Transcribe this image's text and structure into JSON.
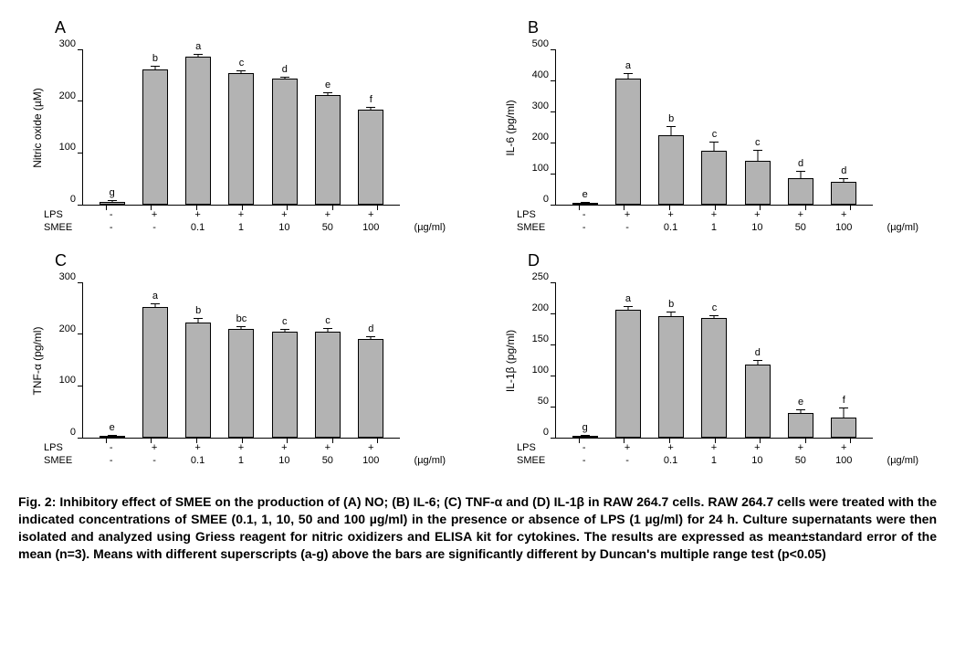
{
  "figure": {
    "panel_letters": [
      "A",
      "B",
      "C",
      "D"
    ],
    "x_row_labels": [
      "LPS",
      "SMEE"
    ],
    "unit_label": "(µg/ml)",
    "panels": {
      "A": {
        "type": "bar",
        "y_label": "Nitric oxide (µM)",
        "ylim": [
          0,
          300
        ],
        "ytick_step": 100,
        "bar_color": "#b3b3b3",
        "bar_border": "#000000",
        "categories_lps": [
          "-",
          "+",
          "+",
          "+",
          "+",
          "+",
          "+"
        ],
        "categories_smee": [
          "-",
          "-",
          "0.1",
          "1",
          "10",
          "50",
          "100"
        ],
        "values": [
          5,
          262,
          286,
          255,
          243,
          212,
          184
        ],
        "errors": [
          2,
          4,
          3,
          3,
          3,
          3,
          3
        ],
        "superscripts": [
          "g",
          "b",
          "a",
          "c",
          "d",
          "e",
          "f"
        ]
      },
      "B": {
        "type": "bar",
        "y_label": "IL-6 (pg/ml)",
        "ylim": [
          0,
          500
        ],
        "ytick_step": 100,
        "bar_color": "#b3b3b3",
        "bar_border": "#000000",
        "categories_lps": [
          "-",
          "+",
          "+",
          "+",
          "+",
          "+",
          "+"
        ],
        "categories_smee": [
          "-",
          "-",
          "0.1",
          "1",
          "10",
          "50",
          "100"
        ],
        "values": [
          3,
          405,
          225,
          175,
          140,
          85,
          75
        ],
        "errors": [
          2,
          15,
          25,
          25,
          35,
          20,
          8
        ],
        "superscripts": [
          "e",
          "a",
          "b",
          "c",
          "c",
          "d",
          "d"
        ]
      },
      "C": {
        "type": "bar",
        "y_label": "TNF-α (pg/ml)",
        "ylim": [
          0,
          300
        ],
        "ytick_step": 100,
        "bar_color": "#b3b3b3",
        "bar_border": "#000000",
        "categories_lps": [
          "-",
          "+",
          "+",
          "+",
          "+",
          "+",
          "+"
        ],
        "categories_smee": [
          "-",
          "-",
          "0.1",
          "1",
          "10",
          "50",
          "100"
        ],
        "values": [
          2,
          252,
          222,
          210,
          205,
          205,
          190
        ],
        "errors": [
          1,
          5,
          8,
          4,
          3,
          5,
          4
        ],
        "superscripts": [
          "e",
          "a",
          "b",
          "bc",
          "c",
          "c",
          "d"
        ]
      },
      "D": {
        "type": "bar",
        "y_label": "IL-1β (pg/ml)",
        "ylim": [
          0,
          250
        ],
        "ytick_step": 50,
        "bar_color": "#b3b3b3",
        "bar_border": "#000000",
        "categories_lps": [
          "-",
          "+",
          "+",
          "+",
          "+",
          "+",
          "+"
        ],
        "categories_smee": [
          "-",
          "-",
          "0.1",
          "1",
          "10",
          "50",
          "100"
        ],
        "values": [
          2,
          206,
          196,
          193,
          117,
          40,
          32
        ],
        "errors": [
          1,
          4,
          5,
          3,
          6,
          4,
          15
        ],
        "superscripts": [
          "g",
          "a",
          "b",
          "c",
          "d",
          "e",
          "f"
        ]
      }
    }
  },
  "caption": {
    "text": "Fig. 2: Inhibitory effect of SMEE on the production of (A) NO; (B) IL-6; (C) TNF-α and (D) IL-1β in RAW 264.7 cells. RAW 264.7 cells were treated with the indicated concentrations of SMEE (0.1, 1, 10, 50 and 100 µg/ml) in the presence or absence of LPS (1 µg/ml) for 24 h. Culture supernatants were then isolated and analyzed using Griess reagent for nitric oxidizers and ELISA kit for cytokines. The results are expressed as mean±standard error of the mean (n=3). Means with different superscripts (a-g) above the bars are significantly different by Duncan's multiple range test (p<0.05)"
  },
  "style": {
    "background": "#ffffff",
    "axis_color": "#000000",
    "title_fontsize": 18,
    "label_fontsize": 12,
    "tick_fontsize": 11,
    "caption_fontsize": 14
  }
}
